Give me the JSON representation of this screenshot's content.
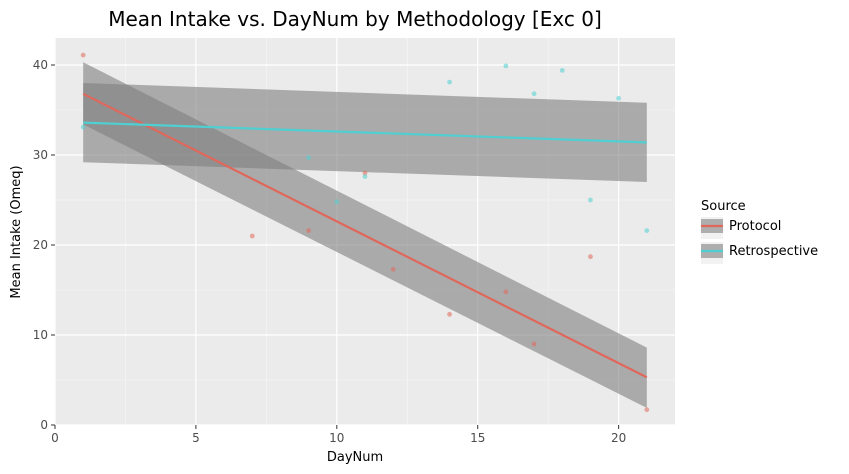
{
  "chart_data": {
    "type": "scatter",
    "title": "Mean Intake vs. DayNum by Methodology [Exc 0]",
    "xlabel": "DayNum",
    "ylabel": "Mean Intake (Omeq)",
    "xlim": [
      0,
      22
    ],
    "ylim": [
      0,
      43
    ],
    "xticks": [
      0,
      5,
      10,
      15,
      20
    ],
    "yticks": [
      0,
      10,
      20,
      30,
      40
    ],
    "grid": true,
    "legend": {
      "title": "Source",
      "placement": "right"
    },
    "series": [
      {
        "name": "Protocol",
        "color": "#e0675b",
        "points": [
          {
            "x": 1,
            "y": 41.1
          },
          {
            "x": 7,
            "y": 21.0
          },
          {
            "x": 9,
            "y": 21.6
          },
          {
            "x": 11,
            "y": 28.0
          },
          {
            "x": 12,
            "y": 17.3
          },
          {
            "x": 14,
            "y": 12.3
          },
          {
            "x": 16,
            "y": 14.8
          },
          {
            "x": 17,
            "y": 9.0
          },
          {
            "x": 19,
            "y": 18.7
          },
          {
            "x": 21,
            "y": 1.7
          }
        ],
        "fit": {
          "x": [
            1,
            21
          ],
          "y": [
            36.8,
            5.3
          ],
          "ci_lower_start": 33.4,
          "ci_upper_start": 40.3,
          "ci_lower_end": 1.9,
          "ci_upper_end": 8.6
        }
      },
      {
        "name": "Retrospective",
        "color": "#4fcfd1",
        "points": [
          {
            "x": 1,
            "y": 33.1
          },
          {
            "x": 9,
            "y": 29.7
          },
          {
            "x": 10,
            "y": 24.8
          },
          {
            "x": 11,
            "y": 27.6
          },
          {
            "x": 14,
            "y": 38.1
          },
          {
            "x": 16,
            "y": 39.9
          },
          {
            "x": 17,
            "y": 36.8
          },
          {
            "x": 18,
            "y": 39.4
          },
          {
            "x": 19,
            "y": 25.0
          },
          {
            "x": 20,
            "y": 36.3
          },
          {
            "x": 21,
            "y": 21.6
          }
        ],
        "fit": {
          "x": [
            1,
            21
          ],
          "y": [
            33.6,
            31.4
          ],
          "ci_lower_start": 29.2,
          "ci_upper_start": 38.0,
          "ci_lower_end": 27.0,
          "ci_upper_end": 35.8
        }
      }
    ]
  }
}
